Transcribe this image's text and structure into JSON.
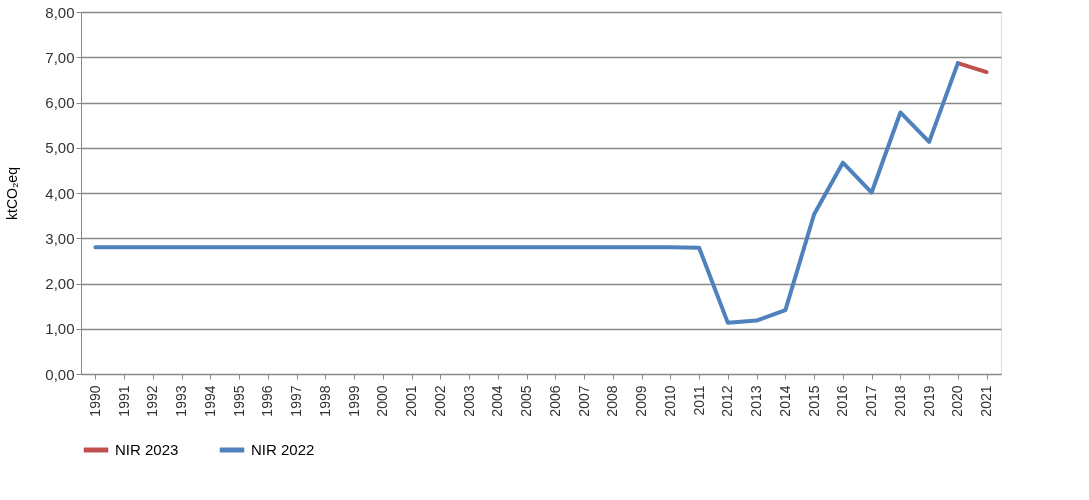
{
  "chart_data": {
    "type": "line",
    "ylabel": "ktCO₂eq",
    "categories": [
      "1990",
      "1991",
      "1992",
      "1993",
      "1994",
      "1995",
      "1996",
      "1997",
      "1998",
      "1999",
      "2000",
      "2001",
      "2002",
      "2003",
      "2004",
      "2005",
      "2006",
      "2007",
      "2008",
      "2009",
      "2010",
      "2011",
      "2012",
      "2013",
      "2014",
      "2015",
      "2016",
      "2017",
      "2018",
      "2019",
      "2020",
      "2021"
    ],
    "series": [
      {
        "name": "NIR 2023",
        "color": "#c0504d",
        "values": [
          null,
          null,
          null,
          null,
          null,
          null,
          null,
          null,
          null,
          null,
          null,
          null,
          null,
          null,
          null,
          null,
          null,
          null,
          null,
          null,
          null,
          null,
          null,
          null,
          null,
          null,
          null,
          null,
          null,
          null,
          6.87,
          6.67
        ]
      },
      {
        "name": "NIR 2022",
        "color": "#4f81bd",
        "values": [
          2.8,
          2.8,
          2.8,
          2.8,
          2.8,
          2.8,
          2.8,
          2.8,
          2.8,
          2.8,
          2.8,
          2.8,
          2.8,
          2.8,
          2.8,
          2.8,
          2.8,
          2.8,
          2.8,
          2.8,
          2.8,
          2.79,
          1.13,
          1.18,
          1.41,
          3.53,
          4.67,
          4.01,
          5.78,
          5.13,
          6.87,
          null
        ]
      }
    ],
    "ylim": [
      0,
      8
    ],
    "yticks": [
      {
        "value": 0,
        "label": "0,00"
      },
      {
        "value": 1,
        "label": "1,00"
      },
      {
        "value": 2,
        "label": "2,00"
      },
      {
        "value": 3,
        "label": "3,00"
      },
      {
        "value": 4,
        "label": "4,00"
      },
      {
        "value": 5,
        "label": "5,00"
      },
      {
        "value": 6,
        "label": "6,00"
      },
      {
        "value": 7,
        "label": "7,00"
      },
      {
        "value": 8,
        "label": "8,00"
      }
    ],
    "grid": "y",
    "legend": "bottom",
    "line_style": "solid",
    "marker": "none"
  }
}
